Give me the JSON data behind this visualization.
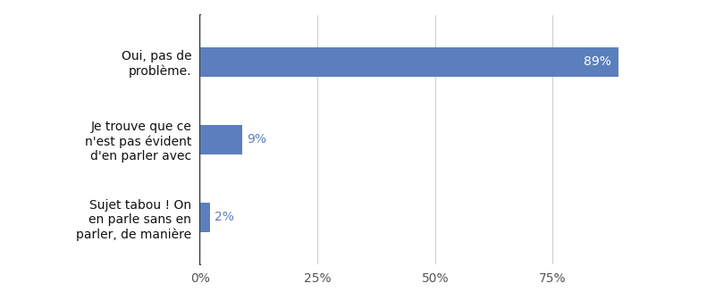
{
  "categories": [
    "Sujet tabou ! On\nen parle sans en\nparler, de manière",
    "Je trouve que ce\nn'est pas évident\nd'en parler avec",
    "Oui, pas de\nproblème."
  ],
  "values": [
    2,
    9,
    89
  ],
  "bar_color": "#5b7fbe",
  "label_color_inside": "#ffffff",
  "label_color_outside": "#5b7fbe",
  "label_fontsize": 10,
  "category_fontsize": 10,
  "tick_fontsize": 10,
  "xlim": [
    0,
    105
  ],
  "xticks": [
    0,
    25,
    50,
    75
  ],
  "xticklabels": [
    "0%",
    "25%",
    "50%",
    "75%"
  ],
  "background_color": "#ffffff",
  "grid_color": "#d0d0d0",
  "bar_height": 0.38
}
